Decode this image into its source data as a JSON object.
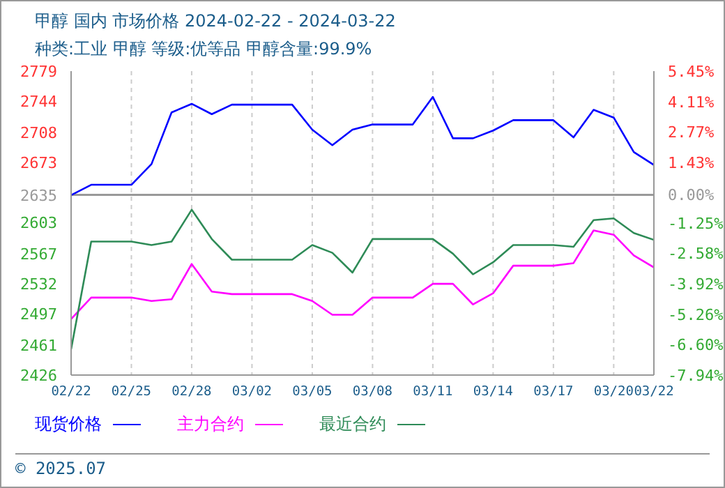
{
  "chart_data": {
    "type": "line",
    "title": "甲醇 国内 市场价格 2024-02-22 - 2024-03-22",
    "subtitle": "种类:工业 甲醇 等级:优等品 甲醇含量:99.9%",
    "x": [
      "2024-02-22",
      "2024-02-23",
      "2024-02-25",
      "2024-02-26",
      "2024-02-27",
      "2024-02-28",
      "2024-02-29",
      "2024-03-01",
      "2024-03-04",
      "2024-03-05",
      "2024-03-06",
      "2024-03-07",
      "2024-03-08",
      "2024-03-10",
      "2024-03-11",
      "2024-03-12",
      "2024-03-13",
      "2024-03-14",
      "2024-03-15",
      "2024-03-17",
      "2024-03-18",
      "2024-03-19",
      "2024-03-20",
      "2024-03-21",
      "2024-03-22"
    ],
    "series": [
      {
        "name": "现货价格",
        "color": "#0000ff",
        "values": [
          2635,
          2647,
          2647,
          2671,
          2731,
          2741,
          2729,
          2740,
          2740,
          2711,
          2693,
          2711,
          2717,
          2717,
          2749,
          2701,
          2701,
          2710,
          2722,
          2722,
          2702,
          2734,
          2725,
          2685,
          2670
        ]
      },
      {
        "name": "主力合约",
        "color": "#ff00ff",
        "values": [
          2491,
          2516,
          2516,
          2512,
          2514,
          2555,
          2523,
          2520,
          2520,
          2512,
          2496,
          2496,
          2516,
          2516,
          2532,
          2532,
          2508,
          2521,
          2553,
          2553,
          2556,
          2594,
          2589,
          2565,
          2551
        ]
      },
      {
        "name": "最近合约",
        "color": "#2e8b57",
        "values": [
          2456,
          2581,
          2581,
          2577,
          2581,
          2618,
          2584,
          2560,
          2560,
          2577,
          2568,
          2545,
          2584,
          2584,
          2584,
          2567,
          2543,
          2557,
          2577,
          2577,
          2575,
          2606,
          2608,
          2591,
          2583
        ]
      }
    ],
    "xlim": [
      "2024-02-22",
      "2024-03-22"
    ],
    "xticks": [
      {
        "value": "2024-02-22",
        "label": "02/22"
      },
      {
        "value": "2024-02-25",
        "label": "02/25"
      },
      {
        "value": "2024-02-28",
        "label": "02/28"
      },
      {
        "value": "2024-03-02",
        "label": "03/02"
      },
      {
        "value": "2024-03-05",
        "label": "03/05"
      },
      {
        "value": "2024-03-08",
        "label": "03/08"
      },
      {
        "value": "2024-03-11",
        "label": "03/11"
      },
      {
        "value": "2024-03-14",
        "label": "03/14"
      },
      {
        "value": "2024-03-17",
        "label": "03/17"
      },
      {
        "value": "2024-03-20",
        "label": "03/20"
      },
      {
        "value": "2024-03-22",
        "label": "03/22"
      }
    ],
    "ylim": [
      2426,
      2779
    ],
    "yticks": [
      2426,
      2461,
      2497,
      2532,
      2567,
      2603,
      2635,
      2673,
      2708,
      2744,
      2779
    ],
    "y2lim": [
      -7.94,
      5.45
    ],
    "y2ticks": [
      {
        "value": -7.94,
        "label": "-7.94%"
      },
      {
        "value": -6.6,
        "label": "-6.60%"
      },
      {
        "value": -5.26,
        "label": "-5.26%"
      },
      {
        "value": -3.92,
        "label": "-3.92%"
      },
      {
        "value": -2.58,
        "label": "-2.58%"
      },
      {
        "value": -1.25,
        "label": "-1.25%"
      },
      {
        "value": 0,
        "label": "0.00%"
      },
      {
        "value": 1.43,
        "label": "1.43%"
      },
      {
        "value": 2.77,
        "label": "2.77%"
      },
      {
        "value": 4.11,
        "label": "4.11%"
      },
      {
        "value": 5.45,
        "label": "5.45%"
      }
    ],
    "ref_lines": [
      {
        "axis": "y2",
        "value": 0,
        "color": "#999999"
      }
    ],
    "grid": true,
    "legend": "bottom",
    "marker": "none",
    "line_style": "solid",
    "annotations": [
      "© 2025.07"
    ]
  }
}
